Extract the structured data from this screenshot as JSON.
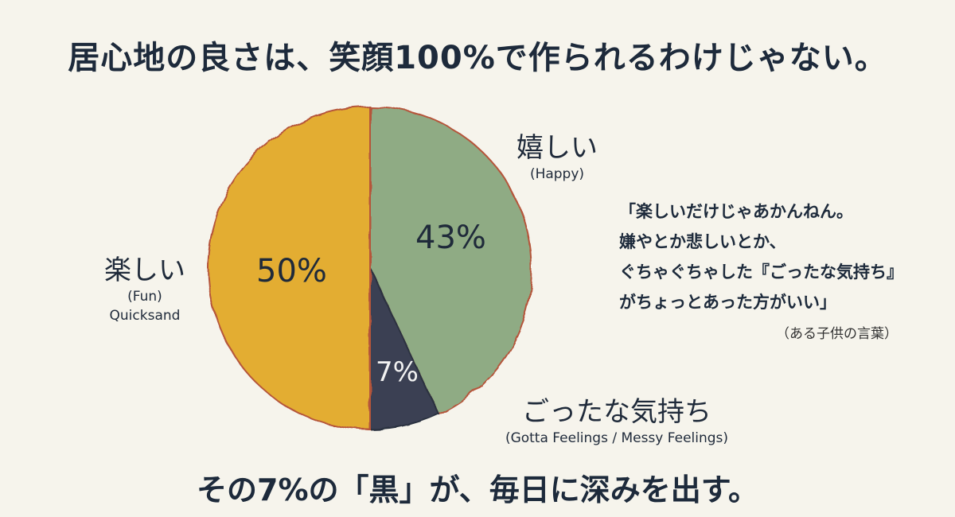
{
  "title": "居心地の良さは、笑顔100%で作られるわけじゃない。",
  "footer": "その7%の「黒」が、毎日に深みを出す。",
  "chart_data": {
    "type": "pie",
    "slices": [
      {
        "label": "楽しい",
        "sublabel": "(Fun)",
        "extra": "Quicksand",
        "value": 50,
        "display": "50%",
        "color": "#e3ad33"
      },
      {
        "label": "嬉しい",
        "sublabel": "(Happy)",
        "value": 43,
        "display": "43%",
        "color": "#8fab84"
      },
      {
        "label": "ごったな気持ち",
        "sublabel": "(Gotta Feelings / Messy Feelings)",
        "value": 7,
        "display": "7%",
        "color": "#3a3f52"
      }
    ]
  },
  "quote": {
    "lines": [
      "「楽しいだけじゃあかんねん。",
      "嫌やとか悲しいとか、",
      "ぐちゃぐちゃした『ごったな気持ち』",
      "がちょっとあった方がいい」"
    ],
    "source": "（ある子供の言葉）"
  }
}
